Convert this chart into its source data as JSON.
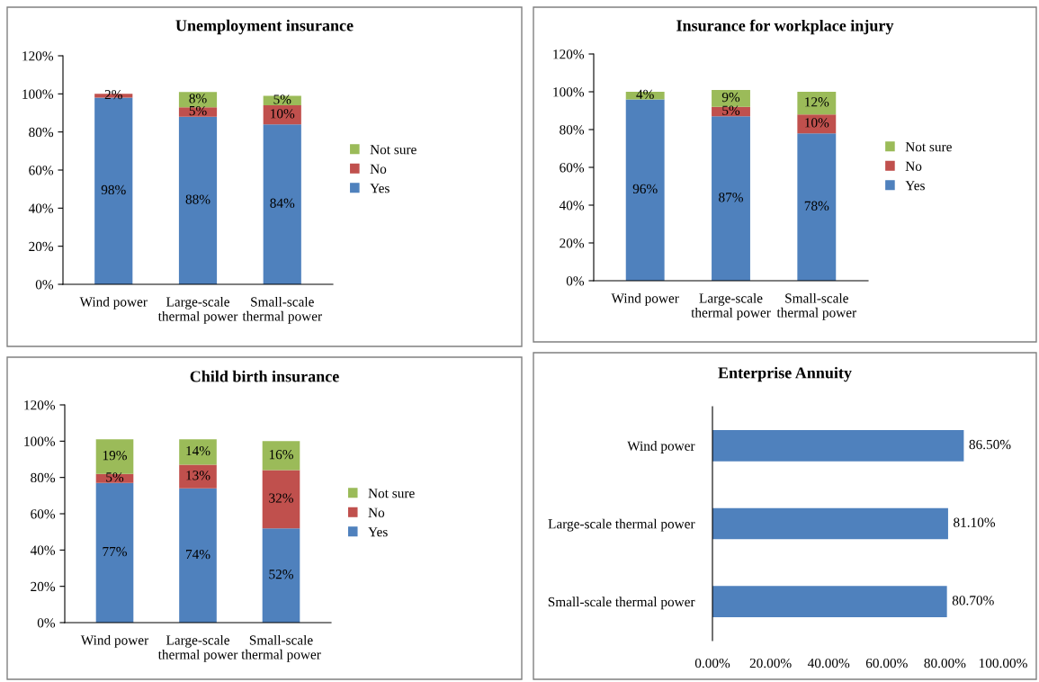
{
  "chart_data": [
    {
      "type": "bar",
      "title": "Unemployment insurance",
      "stacked": true,
      "categories": [
        "Wind power",
        "Large-scale\nthermal power",
        "Small-scale\nthermal power"
      ],
      "series": [
        {
          "name": "Yes",
          "color": "#4f81bd",
          "values": [
            98,
            88,
            84
          ],
          "value_labels": [
            "98%",
            "88%",
            "84%"
          ]
        },
        {
          "name": "No",
          "color": "#c0504d",
          "values": [
            2,
            5,
            10
          ],
          "value_labels": [
            "2%",
            "5%",
            "10%"
          ]
        },
        {
          "name": "Not sure",
          "color": "#9bbb59",
          "values": [
            0,
            8,
            5
          ],
          "value_labels": [
            null,
            "8%",
            "5%"
          ]
        }
      ],
      "ylim": [
        0,
        120
      ],
      "yticks": [
        {
          "value": 0,
          "label": "0%"
        },
        {
          "value": 20,
          "label": "20%"
        },
        {
          "value": 40,
          "label": "40%"
        },
        {
          "value": 60,
          "label": "60%"
        },
        {
          "value": 80,
          "label": "80%"
        },
        {
          "value": 100,
          "label": "100%"
        },
        {
          "value": 120,
          "label": "120%"
        }
      ],
      "grid": false,
      "legend": "right"
    },
    {
      "type": "bar",
      "title": "Insurance for workplace injury",
      "stacked": true,
      "categories": [
        "Wind power",
        "Large-scale\nthermal power",
        "Small-scale\nthermal power"
      ],
      "series": [
        {
          "name": "Yes",
          "color": "#4f81bd",
          "values": [
            96,
            87,
            78
          ],
          "value_labels": [
            "96%",
            "87%",
            "78%"
          ]
        },
        {
          "name": "No",
          "color": "#c0504d",
          "values": [
            0,
            5,
            10
          ],
          "value_labels": [
            null,
            "5%",
            "10%"
          ]
        },
        {
          "name": "Not sure",
          "color": "#9bbb59",
          "values": [
            4,
            9,
            12
          ],
          "value_labels": [
            "4%",
            "9%",
            "12%"
          ]
        }
      ],
      "ylim": [
        0,
        120
      ],
      "yticks": [
        {
          "value": 0,
          "label": "0%"
        },
        {
          "value": 20,
          "label": "20%"
        },
        {
          "value": 40,
          "label": "40%"
        },
        {
          "value": 60,
          "label": "60%"
        },
        {
          "value": 80,
          "label": "80%"
        },
        {
          "value": 100,
          "label": "100%"
        },
        {
          "value": 120,
          "label": "120%"
        }
      ],
      "grid": false,
      "legend": "right"
    },
    {
      "type": "bar",
      "title": "Child birth insurance",
      "stacked": true,
      "categories": [
        "Wind power",
        "Large-scale\nthermal power",
        "Small-scale\nthermal power"
      ],
      "series": [
        {
          "name": "Yes",
          "color": "#4f81bd",
          "values": [
            77,
            74,
            52
          ],
          "value_labels": [
            "77%",
            "74%",
            "52%"
          ]
        },
        {
          "name": "No",
          "color": "#c0504d",
          "values": [
            5,
            13,
            32
          ],
          "value_labels": [
            "5%",
            "13%",
            "32%"
          ]
        },
        {
          "name": "Not sure",
          "color": "#9bbb59",
          "values": [
            19,
            14,
            16
          ],
          "value_labels": [
            "19%",
            "14%",
            "16%"
          ]
        }
      ],
      "ylim": [
        0,
        120
      ],
      "yticks": [
        {
          "value": 0,
          "label": "0%"
        },
        {
          "value": 20,
          "label": "20%"
        },
        {
          "value": 40,
          "label": "40%"
        },
        {
          "value": 60,
          "label": "60%"
        },
        {
          "value": 80,
          "label": "80%"
        },
        {
          "value": 100,
          "label": "100%"
        },
        {
          "value": 120,
          "label": "120%"
        }
      ],
      "grid": false,
      "legend": "right"
    },
    {
      "type": "bar",
      "title": "Enterprise Annuity",
      "orientation": "horizontal",
      "categories": [
        "Wind power",
        "Large-scale thermal power",
        "Small-scale thermal power"
      ],
      "series": [
        {
          "color": "#4f81bd",
          "values": [
            86.5,
            81.1,
            80.7
          ],
          "value_labels": [
            "86.50%",
            "81.10%",
            "80.70%"
          ]
        }
      ],
      "xlim": [
        0,
        100
      ],
      "xticks": [
        {
          "value": 0,
          "label": "0.00%"
        },
        {
          "value": 20,
          "label": "20.00%"
        },
        {
          "value": 40,
          "label": "40.00%"
        },
        {
          "value": 60,
          "label": "60.00%"
        },
        {
          "value": 80,
          "label": "80.00%"
        },
        {
          "value": 100,
          "label": "100.00%"
        }
      ],
      "grid": false,
      "legend": false
    }
  ]
}
